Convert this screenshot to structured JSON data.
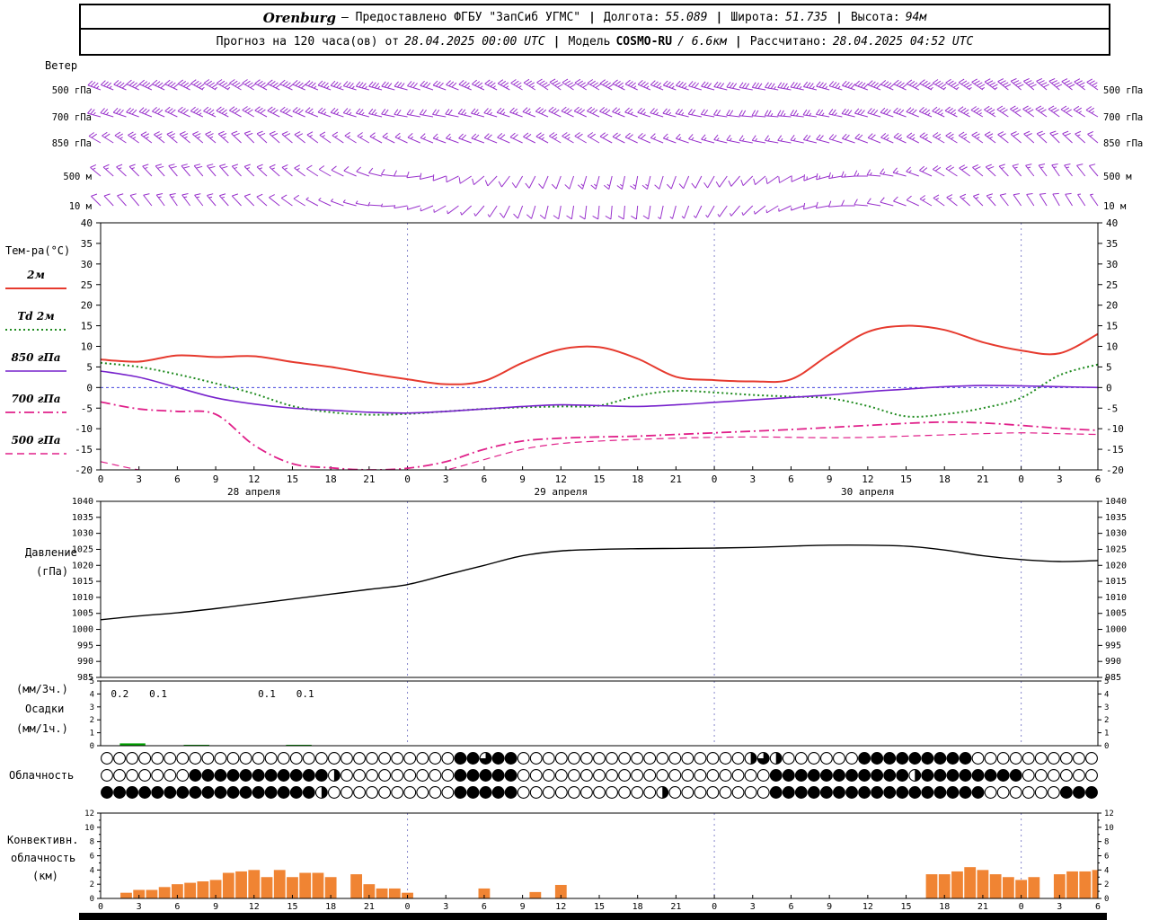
{
  "header": {
    "row1": {
      "station": "Orenburg",
      "provider": "— Предоставлено ФГБУ \"ЗапСиб УГМС\"",
      "sep": "|",
      "lon_label": "Долгота:",
      "lon_value": "55.089",
      "lat_label": "Широта:",
      "lat_value": "51.735",
      "alt_label": "Высота:",
      "alt_value": "94м"
    },
    "row2": {
      "forecast_label": "Прогноз на 120 часа(ов) от",
      "run_time": "28.04.2025 00:00 UTC",
      "sep": "|",
      "model_label": "Модель",
      "model_name": "COSMO-RU",
      "model_res": "/ 6.6км",
      "calc_label": "Рассчитано:",
      "calc_time": "28.04.2025 04:52 UTC"
    }
  },
  "labels": {
    "wind_title": "Ветер",
    "temp_title": "Тем-ра(°C)",
    "pressure_line1": "Давление",
    "pressure_line2": "(гПа)",
    "precip_line1": "(мм/3ч.)",
    "precip_line2": "Осадки",
    "precip_line3": "(мм/1ч.)",
    "cloud_title": "Облачность",
    "conv_line1": "Конвективн.",
    "conv_line2": "облачность",
    "conv_line3": "(км)"
  },
  "chart_data": [
    {
      "id": "wind",
      "type": "wind-barbs",
      "title": "Ветер",
      "color": "#9932cc",
      "x_hours_step": 3,
      "levels": [
        {
          "name": "500 гПа",
          "dir": [
            290,
            295,
            295,
            300,
            300,
            295,
            290,
            285,
            285,
            290,
            295,
            300,
            305,
            300,
            295,
            290,
            285,
            280,
            280,
            285,
            290,
            295,
            300,
            305,
            310,
            310,
            305
          ],
          "spd_kt": [
            35,
            40,
            40,
            45,
            40,
            40,
            35,
            35,
            30,
            30,
            35,
            35,
            40,
            40,
            35,
            35,
            30,
            30,
            35,
            35,
            40,
            40,
            45,
            45,
            40,
            40,
            35
          ]
        },
        {
          "name": "700 гПа",
          "dir": [
            285,
            290,
            295,
            295,
            300,
            295,
            290,
            285,
            280,
            280,
            285,
            290,
            295,
            295,
            290,
            285,
            280,
            275,
            275,
            280,
            285,
            290,
            295,
            300,
            305,
            305,
            300
          ],
          "spd_kt": [
            25,
            30,
            30,
            35,
            30,
            30,
            25,
            25,
            20,
            20,
            25,
            25,
            30,
            30,
            25,
            25,
            20,
            20,
            25,
            25,
            30,
            30,
            35,
            35,
            30,
            30,
            25
          ]
        },
        {
          "name": "850 гПа",
          "dir": [
            300,
            305,
            310,
            310,
            315,
            310,
            305,
            300,
            295,
            290,
            290,
            295,
            300,
            300,
            295,
            290,
            285,
            280,
            280,
            285,
            290,
            295,
            300,
            305,
            310,
            315,
            310
          ],
          "spd_kt": [
            20,
            25,
            25,
            25,
            20,
            20,
            15,
            15,
            15,
            15,
            20,
            20,
            25,
            20,
            20,
            15,
            15,
            15,
            15,
            20,
            20,
            25,
            25,
            25,
            20,
            20,
            15
          ]
        },
        {
          "name": "500 м",
          "dir": [
            310,
            315,
            320,
            320,
            315,
            310,
            300,
            290,
            270,
            250,
            230,
            210,
            200,
            195,
            190,
            200,
            210,
            225,
            240,
            255,
            270,
            285,
            300,
            310,
            320,
            325,
            320
          ],
          "spd_kt": [
            15,
            15,
            20,
            20,
            15,
            15,
            10,
            10,
            10,
            10,
            10,
            10,
            10,
            15,
            15,
            10,
            10,
            10,
            10,
            15,
            15,
            15,
            20,
            20,
            15,
            15,
            10
          ]
        },
        {
          "name": "10 м",
          "dir": [
            315,
            320,
            325,
            320,
            315,
            305,
            295,
            280,
            260,
            240,
            220,
            200,
            190,
            185,
            185,
            195,
            210,
            225,
            245,
            260,
            275,
            290,
            305,
            315,
            325,
            330,
            325
          ],
          "spd_kt": [
            10,
            10,
            15,
            15,
            10,
            10,
            5,
            5,
            5,
            5,
            5,
            10,
            10,
            10,
            10,
            5,
            5,
            5,
            5,
            10,
            10,
            10,
            15,
            15,
            10,
            10,
            5
          ]
        }
      ]
    },
    {
      "id": "temperature",
      "type": "line",
      "title": "Тем-ра(°C)",
      "ylim": [
        -20,
        40
      ],
      "ytick_step": 5,
      "x_hours": [
        0,
        3,
        6,
        9,
        12,
        15,
        18,
        21,
        24,
        27,
        30,
        33,
        36,
        39,
        42,
        45,
        48,
        51,
        54,
        57,
        60,
        63,
        66,
        69,
        72,
        75,
        78
      ],
      "x_tick_labels": [
        "0",
        "3",
        "6",
        "9",
        "12",
        "15",
        "18",
        "21",
        "0",
        "3",
        "6",
        "9",
        "12",
        "15",
        "18",
        "21",
        "0",
        "3",
        "6",
        "9",
        "12",
        "15",
        "18",
        "21",
        "0",
        "3",
        "6"
      ],
      "x_date_labels": [
        {
          "h": 12,
          "label": "28 апреля"
        },
        {
          "h": 36,
          "label": "29 апреля"
        },
        {
          "h": 60,
          "label": "30 апреля"
        }
      ],
      "series": [
        {
          "name": "2м",
          "color": "#e63a2e",
          "style": "solid",
          "width": 2,
          "values": [
            6.8,
            6.3,
            7.8,
            7.4,
            7.6,
            6.2,
            5,
            3.4,
            2,
            0.8,
            1.6,
            6,
            9.3,
            9.8,
            7,
            2.6,
            1.8,
            1.5,
            2,
            8,
            13.5,
            15,
            14,
            11,
            9,
            8.3,
            13
          ]
        },
        {
          "name": "Td 2м",
          "color": "#1f8b1f",
          "style": "dotted",
          "width": 2,
          "values": [
            6,
            5,
            3.2,
            1,
            -1.5,
            -4.5,
            -6,
            -6.6,
            -6.4,
            -5.8,
            -5.2,
            -4.8,
            -4.6,
            -4.4,
            -2,
            -0.8,
            -1.2,
            -1.8,
            -2.2,
            -2.6,
            -4.5,
            -7,
            -6.5,
            -5,
            -2.5,
            3,
            5.6
          ]
        },
        {
          "name": "850 гПа",
          "color": "#7722cc",
          "style": "solid",
          "width": 1.6,
          "values": [
            4,
            2.5,
            0,
            -2.5,
            -4,
            -5,
            -5.5,
            -6,
            -6.2,
            -5.8,
            -5.2,
            -4.6,
            -4.2,
            -4.4,
            -4.6,
            -4.2,
            -3.6,
            -3,
            -2.4,
            -1.8,
            -1,
            -0.4,
            0.2,
            0.5,
            0.4,
            0.2,
            0
          ]
        },
        {
          "name": "700 гПа",
          "color": "#e0218a",
          "style": "dashdot",
          "width": 1.8,
          "values": [
            -3.5,
            -5.2,
            -5.8,
            -6.5,
            -14,
            -18.5,
            -19.5,
            -20,
            -19.6,
            -18,
            -15,
            -13,
            -12.3,
            -12,
            -11.8,
            -11.4,
            -11,
            -10.6,
            -10.2,
            -9.7,
            -9.2,
            -8.7,
            -8.4,
            -8.6,
            -9.2,
            -9.9,
            -10.4
          ]
        },
        {
          "name": "500 гПа",
          "color": "#e0218a",
          "style": "dashed",
          "width": 1.2,
          "values": [
            -18,
            -20,
            -22,
            -23,
            -23.5,
            -23.5,
            -23,
            -22.5,
            -21.5,
            -20,
            -17.5,
            -15,
            -13.6,
            -13,
            -12.6,
            -12.3,
            -12.1,
            -12,
            -12.1,
            -12.2,
            -12.1,
            -11.8,
            -11.5,
            -11.2,
            -11,
            -11.2,
            -11.4
          ]
        }
      ]
    },
    {
      "id": "pressure",
      "type": "line",
      "ylabel": "Давление (гПа)",
      "ylim": [
        985,
        1040
      ],
      "ytick_step": 5,
      "color": "#000000",
      "x_hours": [
        0,
        3,
        6,
        9,
        12,
        15,
        18,
        21,
        24,
        27,
        30,
        33,
        36,
        39,
        42,
        45,
        48,
        51,
        54,
        57,
        60,
        63,
        66,
        69,
        72,
        75,
        78
      ],
      "values": [
        1003,
        1004.2,
        1005.2,
        1006.5,
        1008,
        1009.5,
        1011,
        1012.5,
        1014,
        1017,
        1020,
        1023,
        1024.5,
        1025,
        1025.2,
        1025.3,
        1025.4,
        1025.6,
        1026,
        1026.3,
        1026.3,
        1026,
        1024.8,
        1023,
        1021.8,
        1021.2,
        1021.5
      ]
    },
    {
      "id": "precip",
      "type": "bar",
      "ylabel": "Осадки (мм/3ч., мм/1ч.)",
      "ylim": [
        0,
        5
      ],
      "ytick_step": 1,
      "color": "#00a300",
      "amount_labels": [
        {
          "h": 1.5,
          "text": "0.2"
        },
        {
          "h": 4.5,
          "text": "0.1"
        },
        {
          "h": 13,
          "text": "0.1"
        },
        {
          "h": 16,
          "text": "0.1"
        }
      ],
      "bars": [
        {
          "h0": 1.5,
          "h1": 3.5,
          "v": 0.18
        },
        {
          "h0": 6.5,
          "h1": 8.5,
          "v": 0.07
        },
        {
          "h0": 14.5,
          "h1": 16.5,
          "v": 0.07
        }
      ]
    },
    {
      "id": "cloud",
      "type": "symbols",
      "title": "Облачность",
      "okta_scale": [
        0,
        4
      ],
      "rows": [
        "0000000000000000000000000000443440000000000000000002320000004444444440000000000",
        "0000000444444444442000000000444440000000000000000000044444444444244444444000000",
        "4444444444444444420000000000444440000000000020000000044444444444444444000000444"
      ]
    },
    {
      "id": "convective",
      "type": "bar",
      "ylabel": "Конвективная облачность (км)",
      "ylim": [
        0,
        12
      ],
      "ytick_step": 2,
      "color": "#f08433",
      "values_km": [
        0,
        0,
        0.8,
        1.2,
        1.2,
        1.6,
        2,
        2.2,
        2.4,
        2.6,
        3.6,
        3.8,
        4,
        3,
        4,
        3,
        3.6,
        3.6,
        3,
        0,
        3.4,
        2,
        1.4,
        1.4,
        0.8,
        0,
        0,
        0,
        0,
        0,
        1.4,
        0,
        0,
        0,
        0.9,
        0,
        1.9,
        0,
        0,
        0,
        0,
        0,
        0,
        0,
        0,
        0,
        0,
        0,
        0,
        0,
        0,
        0,
        0,
        0,
        0,
        0,
        0,
        0,
        0,
        0,
        0,
        0,
        0,
        0,
        0,
        3.4,
        3.4,
        3.8,
        4.4,
        4,
        3.4,
        3,
        2.6,
        3,
        0,
        3.4,
        3.8,
        3.8,
        4
      ]
    }
  ]
}
